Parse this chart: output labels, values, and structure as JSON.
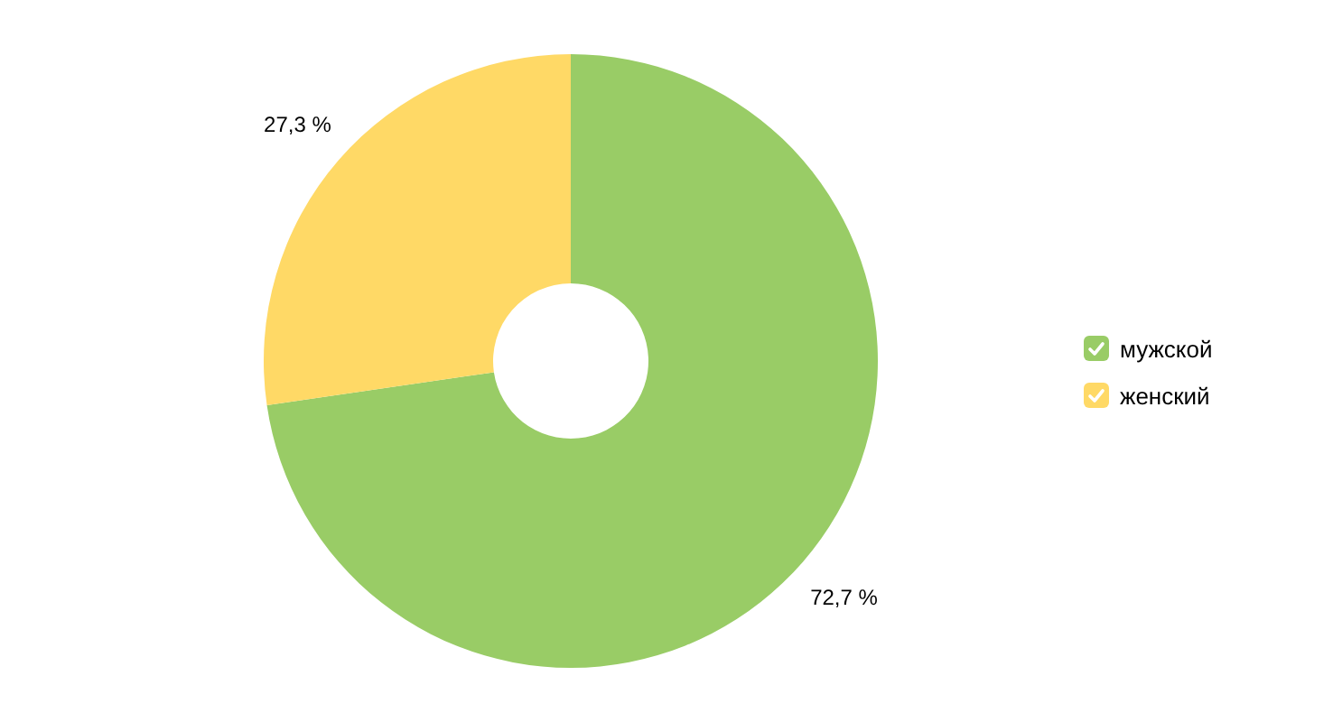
{
  "chart_data": {
    "type": "donut",
    "categories": [
      "мужской",
      "женский"
    ],
    "values": [
      72.7,
      27.3
    ],
    "colors": [
      "#99cc66",
      "#ffd966"
    ],
    "value_labels": [
      "72,7 %",
      "27,3 %"
    ],
    "legend": "right"
  }
}
